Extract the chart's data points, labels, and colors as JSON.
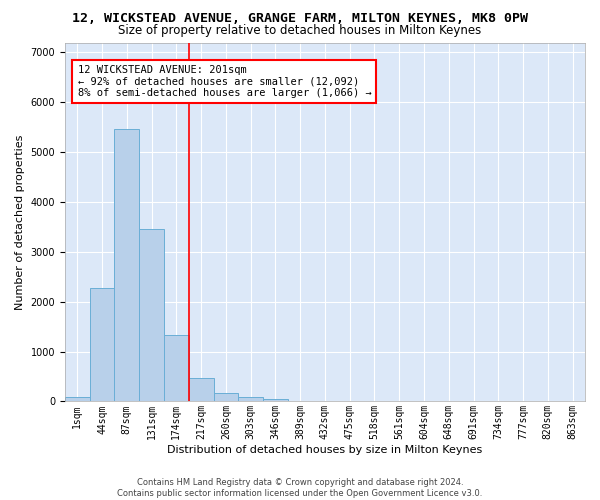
{
  "title": "12, WICKSTEAD AVENUE, GRANGE FARM, MILTON KEYNES, MK8 0PW",
  "subtitle": "Size of property relative to detached houses in Milton Keynes",
  "xlabel": "Distribution of detached houses by size in Milton Keynes",
  "ylabel": "Number of detached properties",
  "footer_line1": "Contains HM Land Registry data © Crown copyright and database right 2024.",
  "footer_line2": "Contains public sector information licensed under the Open Government Licence v3.0.",
  "bar_labels": [
    "1sqm",
    "44sqm",
    "87sqm",
    "131sqm",
    "174sqm",
    "217sqm",
    "260sqm",
    "303sqm",
    "346sqm",
    "389sqm",
    "432sqm",
    "475sqm",
    "518sqm",
    "561sqm",
    "604sqm",
    "648sqm",
    "691sqm",
    "734sqm",
    "777sqm",
    "820sqm",
    "863sqm"
  ],
  "bar_values": [
    80,
    2280,
    5470,
    3450,
    1330,
    470,
    165,
    85,
    45,
    0,
    0,
    0,
    0,
    0,
    0,
    0,
    0,
    0,
    0,
    0,
    0
  ],
  "bar_color": "#b8d0ea",
  "bar_edgecolor": "#6aaed6",
  "vline_color": "red",
  "vline_x_index": 4.5,
  "annotation_line1": "12 WICKSTEAD AVENUE: 201sqm",
  "annotation_line2": "← 92% of detached houses are smaller (12,092)",
  "annotation_line3": "8% of semi-detached houses are larger (1,066) →",
  "annotation_box_color": "white",
  "annotation_box_edgecolor": "red",
  "ylim": [
    0,
    7200
  ],
  "yticks": [
    0,
    1000,
    2000,
    3000,
    4000,
    5000,
    6000,
    7000
  ],
  "plot_background": "#dce8f8",
  "grid_color": "white",
  "title_fontsize": 9.5,
  "subtitle_fontsize": 8.5,
  "tick_fontsize": 7,
  "ylabel_fontsize": 8,
  "xlabel_fontsize": 8,
  "annotation_fontsize": 7.5,
  "footer_fontsize": 6
}
